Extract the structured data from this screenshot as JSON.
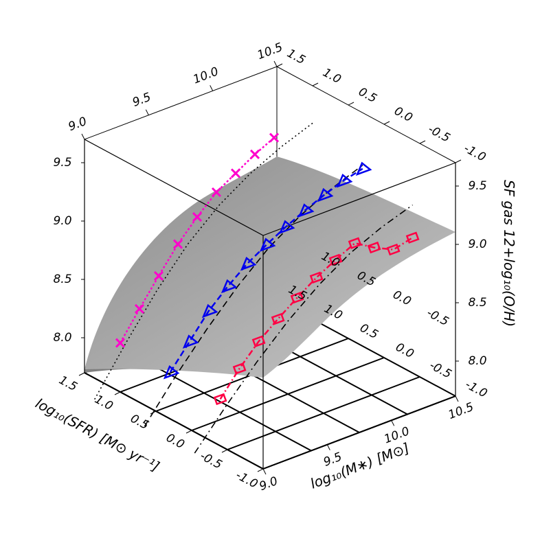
{
  "chart_data": {
    "type": "surface",
    "title": "",
    "xlabel": "log₁₀(M∗) [M⊙]",
    "ylabel": "log₁₀(SFR) [M⊙ yr⁻¹]",
    "zlabel": "SF gas 12+log₁₀(O/H)",
    "xlim": [
      9.0,
      10.5
    ],
    "ylim": [
      -1.0,
      1.5
    ],
    "zlim": [
      7.7,
      9.7
    ],
    "x_ticks": [
      "9.0",
      "9.5",
      "10.0",
      "10.5"
    ],
    "y_ticks": [
      "-1.0",
      "-0.5",
      "0.0",
      "0.5",
      "1.0",
      "1.5"
    ],
    "z_ticks": [
      "8.0",
      "8.5",
      "9.0",
      "9.5"
    ],
    "grid": "base plane",
    "surface": "fitted 12+log(O/H) surface (grey shaded)",
    "series": [
      {
        "color": "#ff00cc",
        "marker": "x",
        "x": [
          9.0,
          9.15,
          9.3,
          9.45,
          9.6,
          9.75,
          9.9,
          10.05,
          10.2
        ],
        "y": [
          1.0,
          1.0,
          1.0,
          1.0,
          1.0,
          1.0,
          1.0,
          1.0,
          1.0
        ],
        "z": [
          8.12,
          8.35,
          8.57,
          8.78,
          8.95,
          9.1,
          9.2,
          9.3,
          9.38
        ]
      },
      {
        "color": "#0000ee",
        "marker": "triangle",
        "x": [
          9.0,
          9.15,
          9.3,
          9.45,
          9.6,
          9.75,
          9.9,
          10.05,
          10.2,
          10.35,
          10.5
        ],
        "y": [
          0.3,
          0.3,
          0.3,
          0.3,
          0.3,
          0.3,
          0.3,
          0.3,
          0.3,
          0.3,
          0.3
        ],
        "z": [
          8.1,
          8.3,
          8.5,
          8.65,
          8.78,
          8.88,
          8.97,
          9.05,
          9.12,
          9.18,
          9.22
        ]
      },
      {
        "color": "#ff0044",
        "marker": "square",
        "x": [
          9.0,
          9.15,
          9.3,
          9.45,
          9.6,
          9.75,
          9.9,
          10.05,
          10.2,
          10.35,
          10.5
        ],
        "y": [
          -0.4,
          -0.4,
          -0.4,
          -0.4,
          -0.4,
          -0.4,
          -0.4,
          -0.4,
          -0.4,
          -0.4,
          -0.4
        ],
        "z": [
          8.1,
          8.3,
          8.47,
          8.6,
          8.72,
          8.83,
          8.92,
          9.0,
          8.9,
          8.82,
          8.86
        ]
      }
    ]
  }
}
